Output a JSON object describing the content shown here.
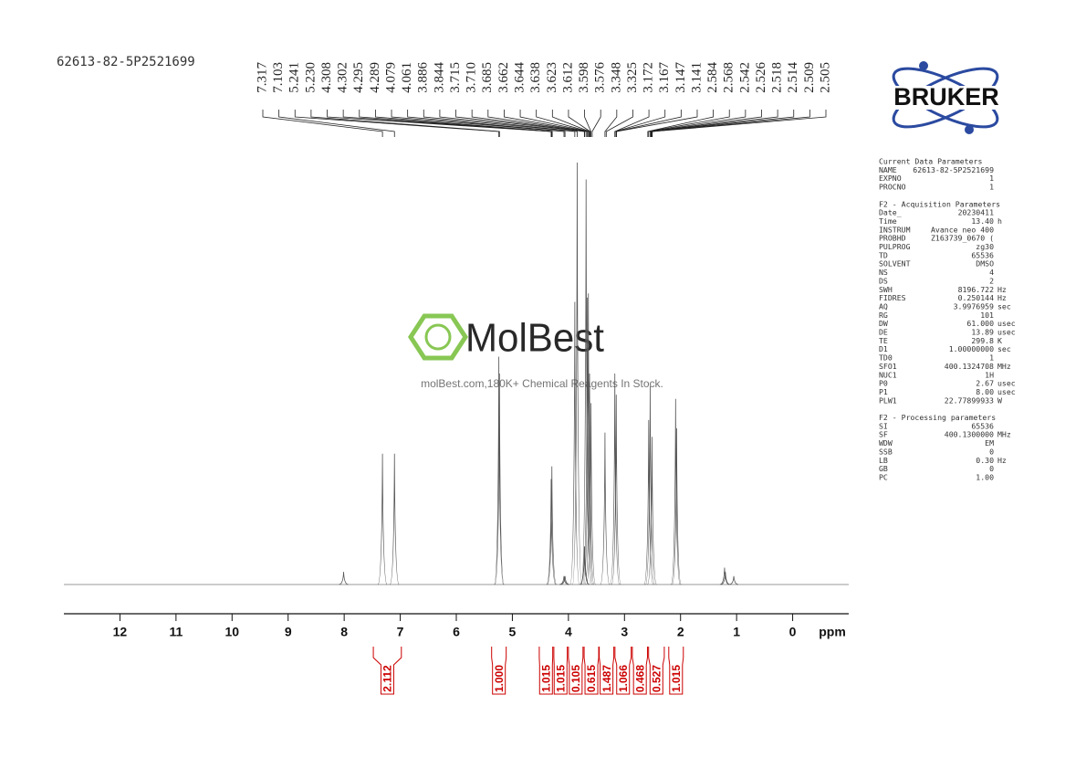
{
  "sample_id": "62613-82-5P2521699",
  "logo": "BRUKER",
  "watermark": {
    "brand": "MolBest",
    "tagline": "molBest.com,180K+ Chemical Reagents In Stock."
  },
  "chart_data": {
    "type": "nmr",
    "x_label": "ppm",
    "xlim": [
      13,
      -1
    ],
    "xticks": [
      12,
      11,
      10,
      9,
      8,
      7,
      6,
      5,
      4,
      3,
      2,
      1,
      0
    ],
    "ylim": [
      0,
      100
    ],
    "color": "#555555",
    "x": [
      8.01,
      7.317,
      7.103,
      5.241,
      5.23,
      4.308,
      4.295,
      4.079,
      4.061,
      3.886,
      3.844,
      3.715,
      3.71,
      3.685,
      3.662,
      3.644,
      3.623,
      3.598,
      3.348,
      3.172,
      3.147,
      2.568,
      2.542,
      2.509,
      2.088,
      2.07,
      1.215,
      1.2,
      1.05
    ],
    "values": [
      3,
      31,
      31,
      54,
      50,
      25,
      28,
      2,
      2,
      67,
      100,
      9,
      9,
      96,
      68,
      69,
      50,
      43,
      36,
      50,
      45,
      39,
      47,
      35,
      44,
      37,
      4,
      3,
      2
    ],
    "peak_labels": [
      7.317,
      7.103,
      5.241,
      {
        "value": 5.23,
        "label": "5.230"
      },
      4.308,
      4.302,
      4.295,
      4.289,
      4.079,
      4.061,
      3.886,
      3.844,
      3.715,
      {
        "value": 3.71,
        "label": "3.710"
      },
      3.685,
      3.662,
      3.644,
      3.638,
      3.623,
      3.612,
      3.598,
      3.576,
      3.348,
      3.325,
      3.172,
      3.167,
      3.147,
      3.141,
      2.584,
      2.568,
      2.542,
      2.526,
      2.518,
      2.514,
      2.509,
      2.505
    ],
    "integrals": {
      "color": "#cc0000",
      "from": [
        7.48,
        5.37,
        4.52,
        4.26,
        4.0,
        3.72,
        3.45,
        3.17,
        2.86,
        2.57,
        2.21
      ],
      "to": [
        6.98,
        5.11,
        4.28,
        4.02,
        3.74,
        3.46,
        3.19,
        2.88,
        2.59,
        2.29,
        1.95
      ],
      "values": [
        2.112,
        1,
        1.015,
        1.015,
        0.105,
        0.615,
        1.487,
        1.066,
        0.468,
        0.527,
        1.015
      ],
      "value_labels": [
        "2.112",
        "1.000",
        "1.015",
        "1.015",
        "0.105",
        "0.615",
        "1.487",
        "1.066",
        "0.468",
        "0.527",
        "1.015"
      ]
    }
  },
  "params": [
    {
      "title": "Current Data Parameters",
      "rows": [
        [
          "NAME",
          "62613-82-5P2521699"
        ],
        [
          "EXPNO",
          "1"
        ],
        [
          "PROCNO",
          "1"
        ]
      ]
    },
    {
      "title": "F2 - Acquisition Parameters",
      "rows": [
        [
          "Date_",
          "20230411"
        ],
        [
          "Time",
          "13.40",
          "h"
        ],
        [
          "INSTRUM",
          "Avance neo 400"
        ],
        [
          "PROBHD",
          "Z163739_0670 ("
        ],
        [
          "PULPROG",
          "zg30"
        ],
        [
          "TD",
          "65536"
        ],
        [
          "SOLVENT",
          "DMSO"
        ],
        [
          "NS",
          "4"
        ],
        [
          "DS",
          "2"
        ],
        [
          "SWH",
          "8196.722",
          "Hz"
        ],
        [
          "FIDRES",
          "0.250144",
          "Hz"
        ],
        [
          "AQ",
          "3.9976959",
          "sec"
        ],
        [
          "RG",
          "101"
        ],
        [
          "DW",
          "61.000",
          "usec"
        ],
        [
          "DE",
          "13.89",
          "usec"
        ],
        [
          "TE",
          "299.8",
          "K"
        ],
        [
          "D1",
          "1.00000000",
          "sec"
        ],
        [
          "TD0",
          "1"
        ],
        [
          "SFO1",
          "400.1324708",
          "MHz"
        ],
        [
          "NUC1",
          "1H"
        ],
        [
          "P0",
          "2.67",
          "usec"
        ],
        [
          "P1",
          "8.00",
          "usec"
        ],
        [
          "PLW1",
          "22.77899933",
          "W"
        ]
      ]
    },
    {
      "title": "F2 - Processing parameters",
      "rows": [
        [
          "SI",
          "65536"
        ],
        [
          "SF",
          "400.1300000",
          "MHz"
        ],
        [
          "WDW",
          "EM"
        ],
        [
          "SSB",
          "0"
        ],
        [
          "LB",
          "0.30",
          "Hz"
        ],
        [
          "GB",
          "0"
        ],
        [
          "PC",
          "1.00"
        ]
      ]
    }
  ]
}
